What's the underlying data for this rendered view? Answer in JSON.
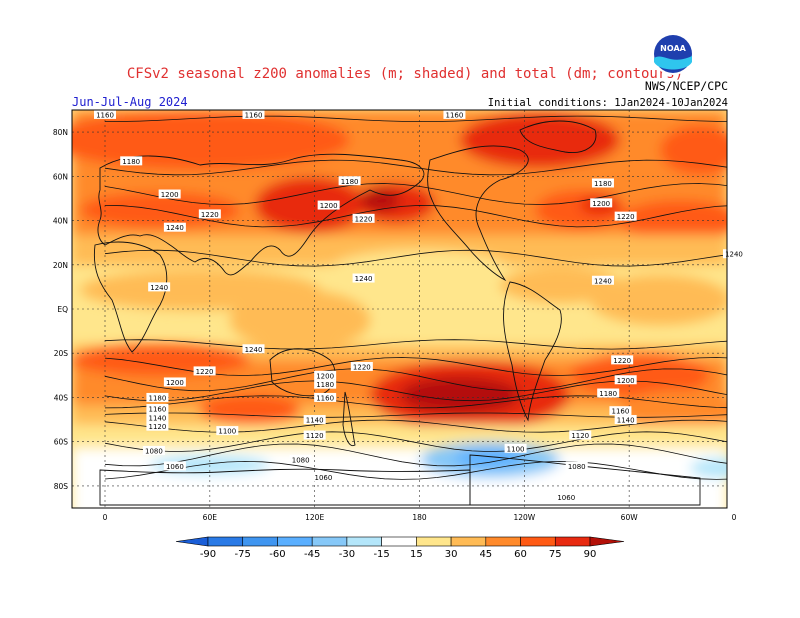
{
  "title": "CFSv2 seasonal z200 anomalies (m; shaded) and total (dm; contours)",
  "season": "Jun-Jul-Aug 2024",
  "initial_conditions": "Initial conditions: 1Jan2024-10Jan2024",
  "agency": "NWS/NCEP/CPC",
  "logo": {
    "text": "NOAA",
    "icon": "noaa-logo"
  },
  "map": {
    "lat_labels": [
      "80N",
      "60N",
      "40N",
      "20N",
      "EQ",
      "20S",
      "40S",
      "60S",
      "80S"
    ],
    "lon_labels": [
      "0",
      "60E",
      "120E",
      "180",
      "120W",
      "60W",
      "0"
    ],
    "contour_labels": [
      {
        "text": "1160",
        "lon": 0,
        "lat": 88
      },
      {
        "text": "1160",
        "lon": 85,
        "lat": 88
      },
      {
        "text": "1160",
        "lon": 200,
        "lat": 88
      },
      {
        "text": "1180",
        "lon": 15,
        "lat": 67
      },
      {
        "text": "1180",
        "lon": 140,
        "lat": 58
      },
      {
        "text": "1180",
        "lon": 285,
        "lat": 57
      },
      {
        "text": "1200",
        "lon": 37,
        "lat": 52
      },
      {
        "text": "1200",
        "lon": 128,
        "lat": 47
      },
      {
        "text": "1200",
        "lon": 284,
        "lat": 48
      },
      {
        "text": "1220",
        "lon": 60,
        "lat": 43
      },
      {
        "text": "1220",
        "lon": 148,
        "lat": 41
      },
      {
        "text": "1220",
        "lon": 298,
        "lat": 42
      },
      {
        "text": "1240",
        "lon": 40,
        "lat": 37
      },
      {
        "text": "1240",
        "lon": 360,
        "lat": 25
      },
      {
        "text": "1240",
        "lon": 148,
        "lat": 14
      },
      {
        "text": "1240",
        "lon": 285,
        "lat": 13
      },
      {
        "text": "1240",
        "lon": 31,
        "lat": 10
      },
      {
        "text": "1240",
        "lon": 85,
        "lat": -18
      },
      {
        "text": "1220",
        "lon": 57,
        "lat": -28
      },
      {
        "text": "1220",
        "lon": 147,
        "lat": -26
      },
      {
        "text": "1220",
        "lon": 296,
        "lat": -23
      },
      {
        "text": "1200",
        "lon": 40,
        "lat": -33
      },
      {
        "text": "1200",
        "lon": 126,
        "lat": -30
      },
      {
        "text": "1200",
        "lon": 298,
        "lat": -32
      },
      {
        "text": "1180",
        "lon": 30,
        "lat": -40
      },
      {
        "text": "1180",
        "lon": 126,
        "lat": -34
      },
      {
        "text": "1180",
        "lon": 288,
        "lat": -38
      },
      {
        "text": "1160",
        "lon": 30,
        "lat": -45
      },
      {
        "text": "1160",
        "lon": 126,
        "lat": -40
      },
      {
        "text": "1160",
        "lon": 295,
        "lat": -46
      },
      {
        "text": "1140",
        "lon": 30,
        "lat": -49
      },
      {
        "text": "1140",
        "lon": 120,
        "lat": -50
      },
      {
        "text": "1140",
        "lon": 298,
        "lat": -50
      },
      {
        "text": "1120",
        "lon": 30,
        "lat": -53
      },
      {
        "text": "1120",
        "lon": 120,
        "lat": -57
      },
      {
        "text": "1120",
        "lon": 272,
        "lat": -57
      },
      {
        "text": "1100",
        "lon": 70,
        "lat": -55
      },
      {
        "text": "1100",
        "lon": 235,
        "lat": -63
      },
      {
        "text": "1080",
        "lon": 28,
        "lat": -64
      },
      {
        "text": "1080",
        "lon": 112,
        "lat": -68
      },
      {
        "text": "1080",
        "lon": 270,
        "lat": -71
      },
      {
        "text": "1060",
        "lon": 40,
        "lat": -71
      },
      {
        "text": "1060",
        "lon": 125,
        "lat": -76
      },
      {
        "text": "1060",
        "lon": 264,
        "lat": -85
      }
    ]
  },
  "colorbar": {
    "labels": [
      "-90",
      "-75",
      "-60",
      "-45",
      "-30",
      "-15",
      "15",
      "30",
      "45",
      "60",
      "75",
      "90"
    ],
    "colors": [
      "#1a5ed8",
      "#2a7ae6",
      "#3f95f0",
      "#5aafff",
      "#86c8f8",
      "#b4e6fa",
      "#ffffff",
      "#ffe68c",
      "#ffbb55",
      "#ff8a2b",
      "#ff5a14",
      "#e82a10",
      "#b41008"
    ]
  }
}
